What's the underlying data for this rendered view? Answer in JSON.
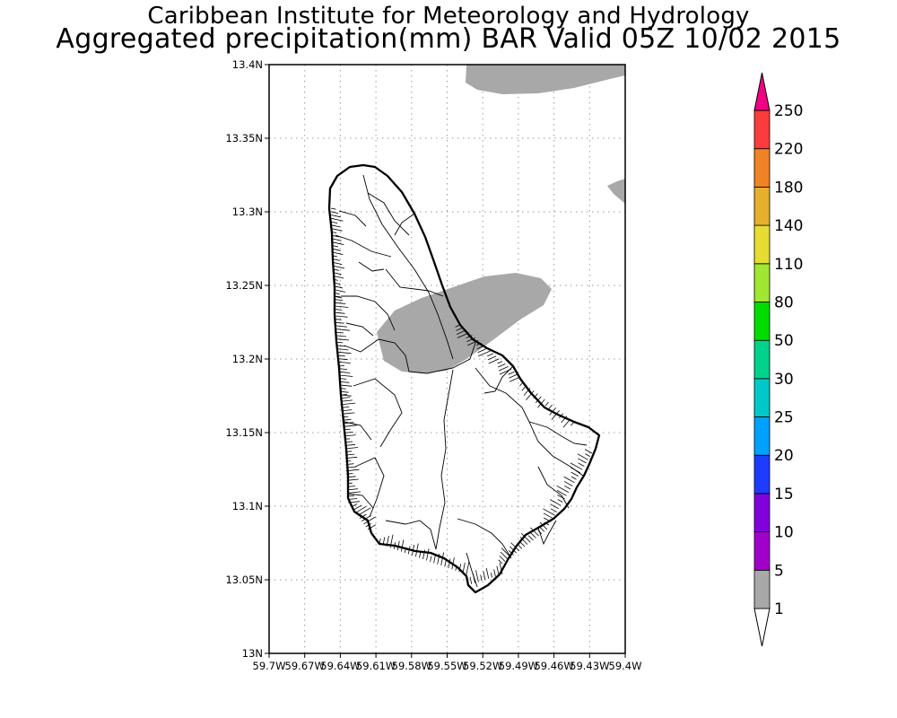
{
  "header": {
    "institute": "Caribbean Institute for Meteorology and Hydrology",
    "product": "Aggregated precipitation(mm) BAR Valid 05Z 10/02 2015"
  },
  "map": {
    "lat_ticks": [
      "13.4N",
      "13.35N",
      "13.3N",
      "13.25N",
      "13.2N",
      "13.15N",
      "13.1N",
      "13.05N",
      "13N"
    ],
    "lon_ticks": [
      "59.7W",
      "59.67W",
      "59.64W",
      "59.61W",
      "59.58W",
      "59.55W",
      "59.52W",
      "59.49W",
      "59.46W",
      "59.43W",
      "59.4W"
    ],
    "lat_range": [
      13.0,
      13.4
    ],
    "lon_range": [
      -59.7,
      -59.4
    ],
    "grid": "dotted",
    "precip_fill_color": "#a8a8a8"
  },
  "colorbar": {
    "levels": [
      "1",
      "5",
      "10",
      "15",
      "20",
      "25",
      "30",
      "50",
      "80",
      "110",
      "140",
      "180",
      "220",
      "250"
    ],
    "colors": [
      "#a8a8a8",
      "#a000c8",
      "#8200dc",
      "#1e3cff",
      "#00a0ff",
      "#00c8c8",
      "#00d28c",
      "#00dc00",
      "#a0e632",
      "#e6dc32",
      "#e6af2d",
      "#f08228",
      "#fa3c3c",
      "#f00082"
    ],
    "under_color": "#ffffff"
  }
}
